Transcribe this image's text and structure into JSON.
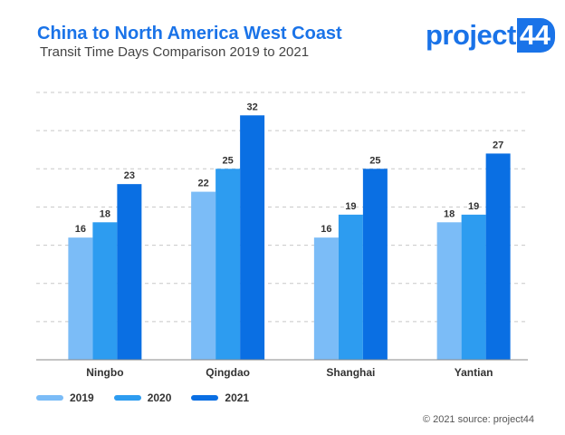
{
  "header": {
    "title": "China to North America West Coast",
    "subtitle": "Transit Time Days Comparison 2019 to 2021"
  },
  "logo": {
    "text": "project",
    "number": "44"
  },
  "source": "© 2021 source: project44",
  "colors": {
    "2019": "#7bbcf7",
    "2020": "#2d9cf0",
    "2021": "#0a6fe3",
    "grid": "#c8c8c8",
    "axis": "#888888"
  },
  "chart_data": {
    "type": "bar",
    "categories": [
      "Ningbo",
      "Qingdao",
      "Shanghai",
      "Yantian"
    ],
    "series": [
      {
        "name": "2019",
        "values": [
          16,
          22,
          16,
          18
        ]
      },
      {
        "name": "2020",
        "values": [
          18,
          25,
          19,
          19
        ]
      },
      {
        "name": "2021",
        "values": [
          23,
          32,
          25,
          27
        ]
      }
    ],
    "ylim": [
      0,
      35
    ],
    "grid": true,
    "legend": "bottom-left"
  }
}
